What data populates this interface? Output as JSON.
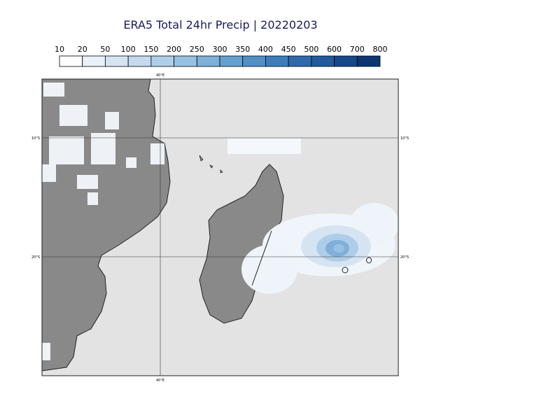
{
  "title": "ERA5 Total 24hr Precip | 20220203",
  "colorbar": {
    "levels": [
      10,
      20,
      50,
      100,
      150,
      200,
      250,
      300,
      350,
      400,
      450,
      500,
      600,
      700,
      800
    ],
    "colors": [
      "#ffffff",
      "#e8f0f8",
      "#d6e4f2",
      "#c4d9ee",
      "#aecde8",
      "#98c1e1",
      "#7fb0d8",
      "#66a0cf",
      "#528fc5",
      "#3f7dba",
      "#2f6bab",
      "#225a9c",
      "#16488a",
      "#0c3572"
    ]
  },
  "grid_labels": {
    "lon": [
      "40°E"
    ],
    "lat": [
      "10°S",
      "20°S"
    ]
  }
}
